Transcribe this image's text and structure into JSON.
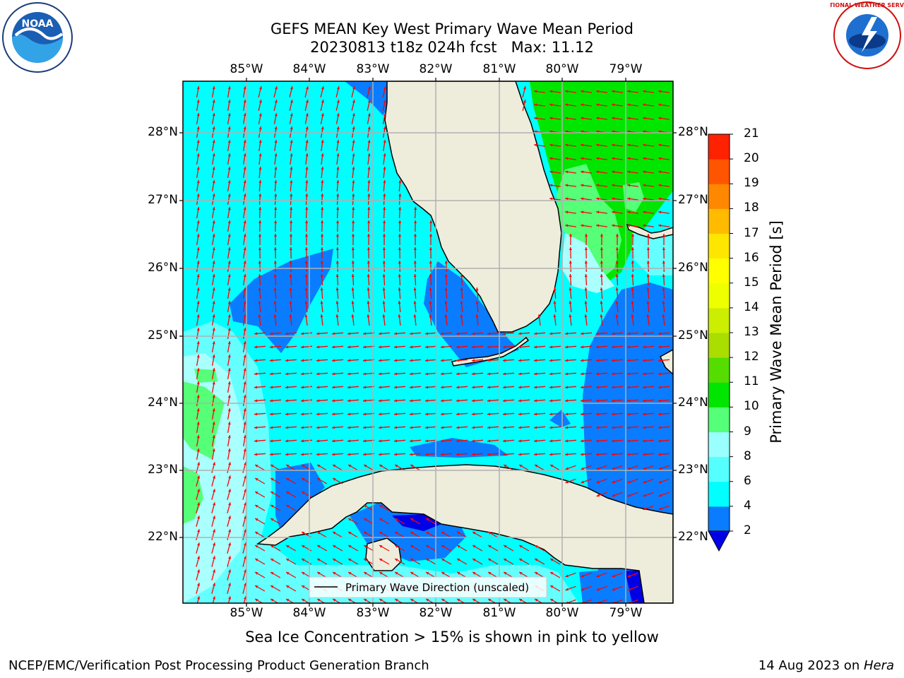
{
  "title": {
    "line1": "GEFS MEAN Key West Primary Wave Mean Period",
    "line2": "20230813 t18z 024h fcst   Max: 11.12"
  },
  "map": {
    "lon_labels": [
      "85°W",
      "84°W",
      "83°W",
      "82°W",
      "81°W",
      "80°W",
      "79°W"
    ],
    "lat_labels": [
      "28°N",
      "27°N",
      "26°N",
      "25°N",
      "24°N",
      "23°N",
      "22°N"
    ],
    "legend_label": "Primary Wave Direction (unscaled)",
    "colors": {
      "land": "#eeeddc",
      "ocean_2_4": "#0a7cff",
      "ocean_4_6": "#00ffff",
      "ocean_6_8": "#66ffff",
      "ocean_8_9": "#aaffff",
      "ocean_9_10": "#55ff77",
      "ocean_10_11": "#00e600",
      "ocean_below_2": "#0000e6",
      "vector": "#ff0000"
    }
  },
  "colorbar": {
    "label": "Primary Wave Mean Period [s]",
    "ticks": [
      "2",
      "4",
      "6",
      "8",
      "9",
      "10",
      "11",
      "12",
      "13",
      "14",
      "15",
      "16",
      "17",
      "18",
      "19",
      "20",
      "21"
    ],
    "colors": [
      "#0a7cff",
      "#00ffff",
      "#55ffff",
      "#99ffff",
      "#55ff77",
      "#00e600",
      "#55dd00",
      "#aadd00",
      "#ccee00",
      "#eeff00",
      "#ffff00",
      "#ffe600",
      "#ffbb00",
      "#ff8800",
      "#ff5500",
      "#ff2200"
    ],
    "extend_color": "#0000e6"
  },
  "caption": "Sea Ice Concentration > 15% is shown in pink to yellow",
  "footer": {
    "left": "NCEP/EMC/Verification Post Processing Product Generation Branch",
    "right_prefix": "14 Aug 2023 on ",
    "right_machine": "Hera"
  },
  "logos": {
    "noaa_text": "NOAA",
    "nws_text": "NATIONAL WEATHER SERVICE"
  }
}
